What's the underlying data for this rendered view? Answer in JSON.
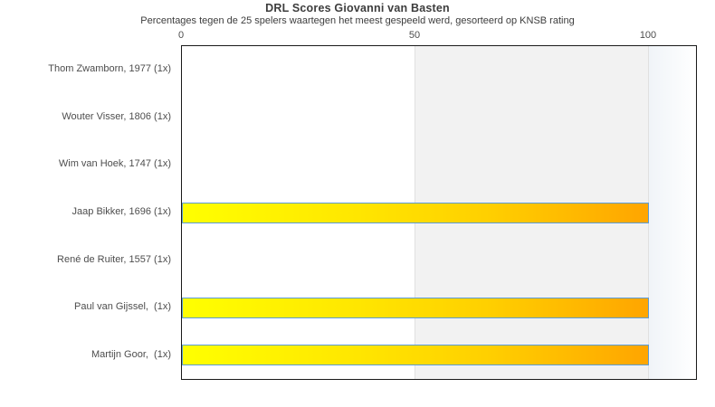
{
  "chart_data": {
    "type": "bar",
    "orientation": "horizontal",
    "title": "DRL Scores Giovanni van Basten",
    "subtitle": "Percentages tegen de 25 spelers waartegen het meest gespeeld werd, gesorteerd op KNSB rating",
    "categories": [
      "Thom Zwamborn, 1977 (1x)",
      "Wouter Visser, 1806 (1x)",
      "Wim van Hoek, 1747 (1x)",
      "Jaap Bikker, 1696 (1x)",
      "René de Ruiter, 1557 (1x)",
      "Paul van Gijssel,  (1x)",
      "Martijn Goor,  (1x)"
    ],
    "values": [
      0,
      0,
      0,
      100,
      0,
      100,
      100
    ],
    "xlabel": "",
    "ylabel": "",
    "xticks": [
      0,
      50,
      100
    ],
    "xlim": [
      0,
      110
    ],
    "legend": "none",
    "grid": "vertical gridlines at 50 and 100",
    "background_bands": [
      {
        "from": 50,
        "to": 100,
        "style": "solid",
        "color": "#f2f2f2"
      },
      {
        "from": 100,
        "to": 110,
        "style": "gradient",
        "color_start": "#f0f4f8",
        "color_end": "#ffffff"
      }
    ],
    "colors": {
      "bar_gradient_start": "#ffff00",
      "bar_gradient_end": "#ffa500",
      "bar_border": "#5b9bd5",
      "plot_border": "#1a1a1a",
      "band_50_100": "#f2f2f2",
      "gridline": "#e0e0e0",
      "text": "#4d4d4d",
      "title_text": "#3d3d3d"
    }
  }
}
